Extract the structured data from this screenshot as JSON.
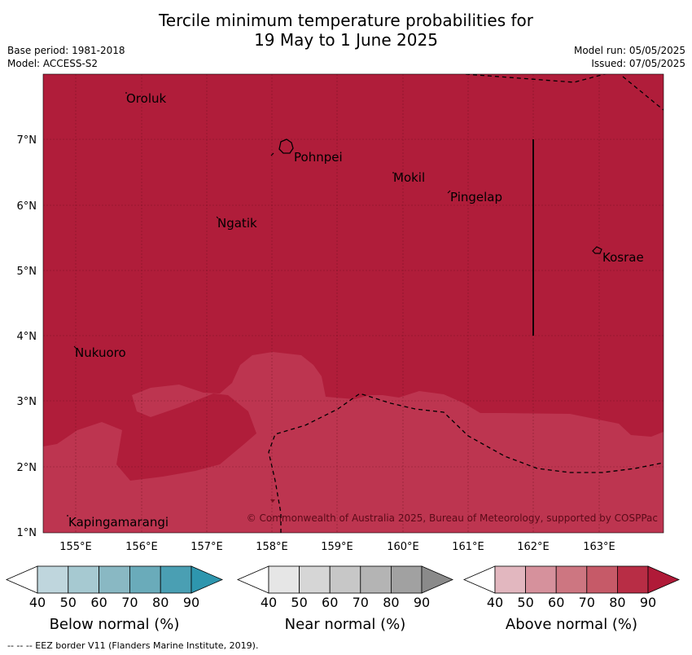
{
  "title_line1": "Tercile minimum temperature probabilities for",
  "title_line2": "19 May to 1 June 2025",
  "base_period": "Base period: 1981-2018",
  "model": "Model: ACCESS-S2",
  "model_run": "Model run: 05/05/2025",
  "issued": "Issued: 07/05/2025",
  "copyright": "© Commonwealth of Australia 2025, Bureau of Meteorology, supported by COSPPac",
  "footer": "--  --  -- EEZ border V11 (Flanders Marine Institute, 2019).",
  "lat_labels": [
    "7°N",
    "6°N",
    "5°N",
    "4°N",
    "3°N",
    "2°N",
    "1°N"
  ],
  "lon_labels": [
    "155°E",
    "156°E",
    "157°E",
    "158°E",
    "159°E",
    "160°E",
    "161°E",
    "162°E",
    "163°E"
  ],
  "places": [
    "Oroluk",
    "Pohnpei",
    "Mokil",
    "Pingelap",
    "Ngatik",
    "Kosrae",
    "Nukuoro",
    "Kapingamarangi"
  ],
  "colorbars": [
    {
      "label": "Below normal (%)",
      "ticks": [
        "40",
        "50",
        "60",
        "70",
        "80",
        "90"
      ],
      "colors": [
        "#bfd6dd",
        "#a6c9d1",
        "#89b8c3",
        "#6aabba",
        "#4a9fb3",
        "#2e96ae"
      ]
    },
    {
      "label": "Near normal (%)",
      "ticks": [
        "40",
        "50",
        "60",
        "70",
        "80",
        "90"
      ],
      "colors": [
        "#e6e6e6",
        "#d6d6d6",
        "#c7c7c7",
        "#b4b4b4",
        "#a1a1a1",
        "#8a8a8a"
      ]
    },
    {
      "label": "Above normal (%)",
      "ticks": [
        "40",
        "50",
        "60",
        "70",
        "80",
        "90"
      ],
      "colors": [
        "#e2b7bf",
        "#d6919c",
        "#cd7681",
        "#c65a68",
        "#b82d45",
        "#b01a38"
      ]
    }
  ],
  "colors": {
    "above_80": "#b01d3a",
    "above_70": "#bd3550"
  }
}
